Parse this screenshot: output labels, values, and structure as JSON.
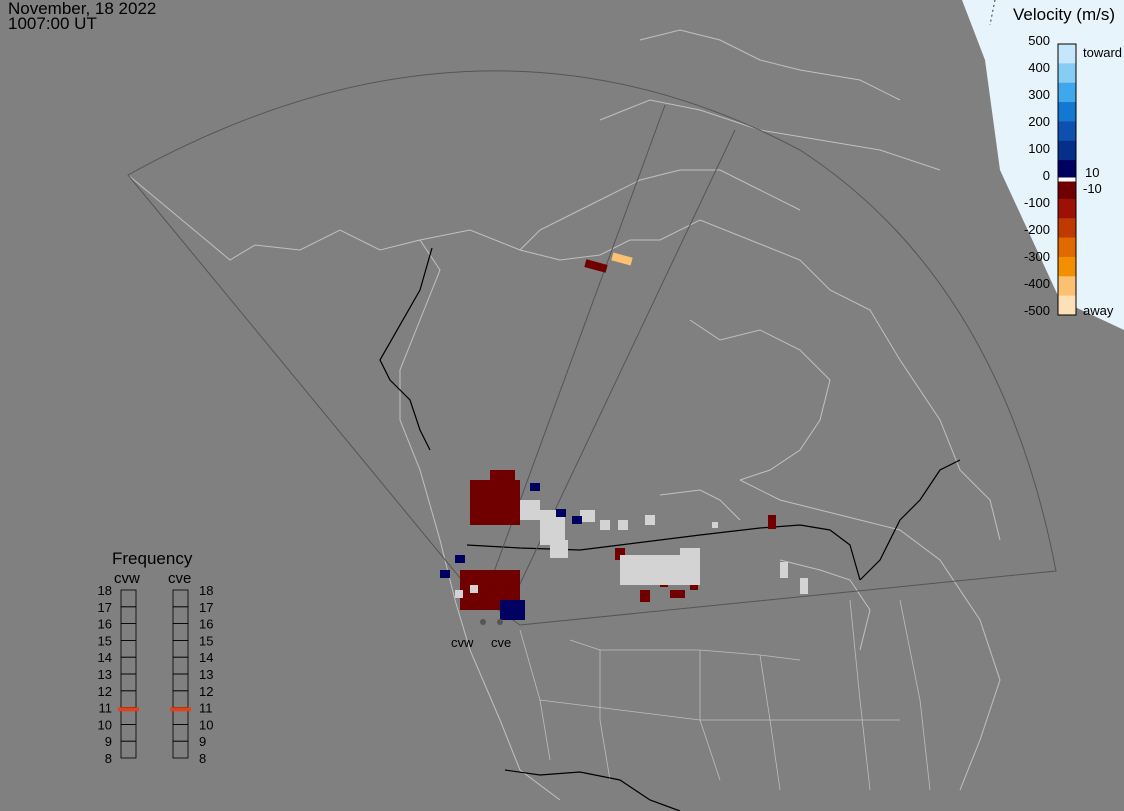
{
  "header": {
    "date": "November, 18 2022",
    "time": "1007:00 UT"
  },
  "velocity_legend": {
    "title": "Velocity (m/s)",
    "toward_label": "toward",
    "away_label": "away",
    "ticks": [
      "500",
      "400",
      "300",
      "200",
      "100",
      "0",
      "-100",
      "-200",
      "-300",
      "-400",
      "-500"
    ],
    "threshold_labels": [
      "10",
      "-10"
    ],
    "colors": [
      "#c6e7fb",
      "#86cdf5",
      "#3fa7ec",
      "#1477d2",
      "#0e4fb0",
      "#052f88",
      "#000060",
      "#700000",
      "#9c1006",
      "#c03a00",
      "#e06a00",
      "#f39000",
      "#fbc070",
      "#fde0b8"
    ]
  },
  "frequency_panel": {
    "title": "Frequency",
    "radars": [
      "cvw",
      "cve"
    ],
    "scale": [
      "18",
      "17",
      "16",
      "15",
      "14",
      "13",
      "12",
      "11",
      "10",
      "9",
      "8"
    ],
    "selected_mhz": [
      10.9,
      10.9
    ],
    "marker_color": "#e0421a"
  },
  "radar_sites": [
    {
      "code": "cvw"
    },
    {
      "code": "cve"
    }
  ],
  "colors": {
    "background": "#808080",
    "ground_scatter": "#d3d3d3",
    "coastline": "#c0c0c0",
    "fov": "#555555",
    "border": "#000000",
    "sky": "#e8f4fb"
  }
}
